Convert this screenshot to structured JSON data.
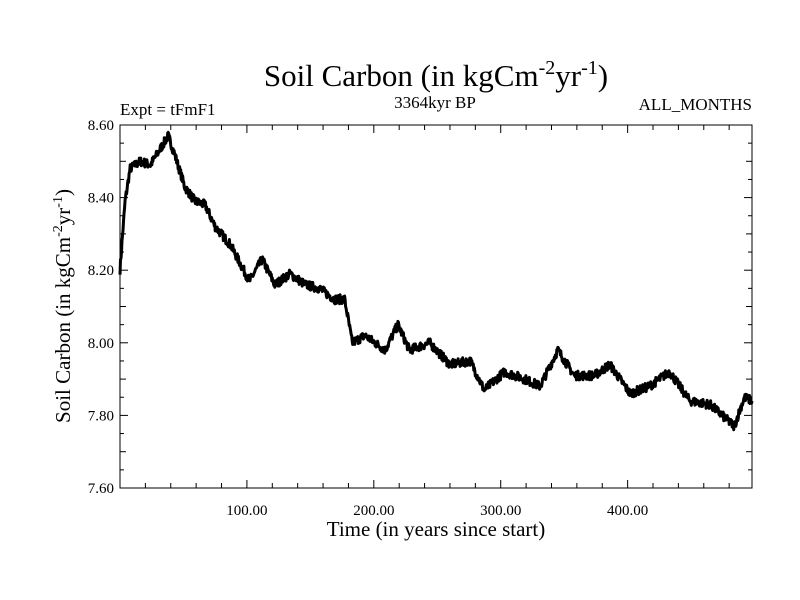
{
  "chart_data": {
    "type": "line",
    "title": {
      "main": "Soil Carbon (in kgCm",
      "sup1": "-2",
      "mid": "yr",
      "sup2": "-1",
      "end": ")"
    },
    "subtitle_left": "Expt = tFmF1",
    "subtitle_center": "3364kyr BP",
    "subtitle_right": "ALL_MONTHS",
    "xlabel": "Time (in years since start)",
    "ylabel": {
      "main": "Soil Carbon (in kgCm",
      "sup1": "-2",
      "mid": "yr",
      "sup2": "-1",
      "end": ")"
    },
    "xlim": [
      0,
      498
    ],
    "ylim": [
      7.6,
      8.6
    ],
    "xticks": [
      100,
      200,
      300,
      400
    ],
    "xtick_labels": [
      "100.00",
      "200.00",
      "300.00",
      "400.00"
    ],
    "yticks": [
      7.6,
      7.8,
      8.0,
      8.2,
      8.4,
      8.6
    ],
    "ytick_labels": [
      "7.60",
      "7.80",
      "8.00",
      "8.20",
      "8.40",
      "8.60"
    ],
    "grid": false,
    "series": [
      {
        "name": "Soil Carbon",
        "color": "#000000",
        "x": [
          0,
          4,
          8,
          16,
          24,
          31,
          38,
          43,
          51,
          59,
          67,
          75,
          87,
          102,
          112,
          122,
          134,
          146,
          157,
          169,
          177,
          183,
          193,
          209,
          219,
          228,
          244,
          260,
          276,
          287,
          303,
          319,
          331,
          345,
          358,
          374,
          386,
          402,
          417,
          433,
          449,
          465,
          484,
          492,
          498
        ],
        "y": [
          8.2,
          8.39,
          8.48,
          8.5,
          8.49,
          8.53,
          8.57,
          8.52,
          8.43,
          8.39,
          8.38,
          8.32,
          8.27,
          8.17,
          8.23,
          8.16,
          8.19,
          8.16,
          8.15,
          8.12,
          8.12,
          8.0,
          8.02,
          7.98,
          8.05,
          7.98,
          8.0,
          7.94,
          7.95,
          7.87,
          7.92,
          7.9,
          7.88,
          7.98,
          7.91,
          7.91,
          7.94,
          7.86,
          7.88,
          7.92,
          7.84,
          7.83,
          7.77,
          7.85,
          7.84
        ]
      }
    ]
  }
}
